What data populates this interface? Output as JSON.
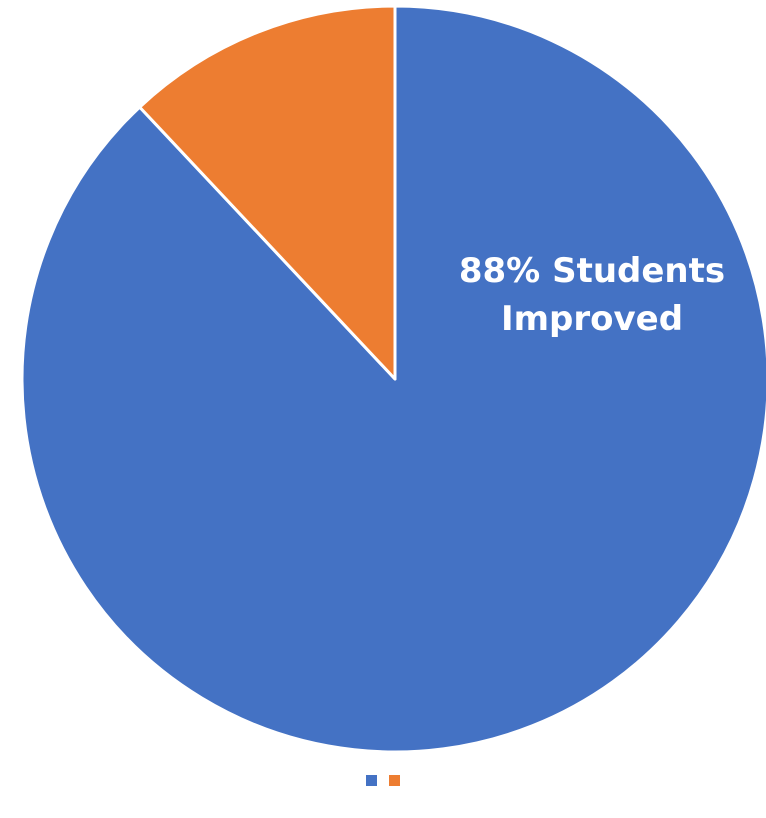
{
  "chart_data": {
    "type": "pie",
    "title": "",
    "slices": [
      {
        "value": 88,
        "color": "#4472C4",
        "label_lines": [
          "88% Students",
          "Improved"
        ]
      },
      {
        "value": 12,
        "color": "#ED7D31",
        "label_lines": []
      }
    ],
    "start_angle": "12 o'clock",
    "direction": "clockwise",
    "slice_border_color": "#FFFFFF",
    "legend": {
      "position": "bottom",
      "entries": [
        "",
        ""
      ]
    }
  }
}
